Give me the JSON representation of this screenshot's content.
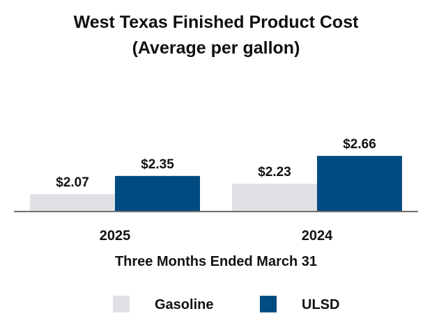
{
  "chart_data": {
    "type": "bar",
    "title": "West Texas Finished Product Cost",
    "subtitle": "(Average per gallon)",
    "xlabel": "Three Months Ended March 31",
    "ylabel": "",
    "categories": [
      "2025",
      "2024"
    ],
    "series": [
      {
        "name": "Gasoline",
        "color": "#e0e1e6",
        "values": [
          2.07,
          2.23
        ],
        "labels": [
          "$2.07",
          "$2.23"
        ]
      },
      {
        "name": "ULSD",
        "color": "#004b80",
        "values": [
          2.35,
          2.66
        ],
        "labels": [
          "$2.35",
          "$2.66"
        ]
      }
    ],
    "ylim": [
      0,
      2.66
    ],
    "grid": false,
    "legend_position": "bottom"
  }
}
